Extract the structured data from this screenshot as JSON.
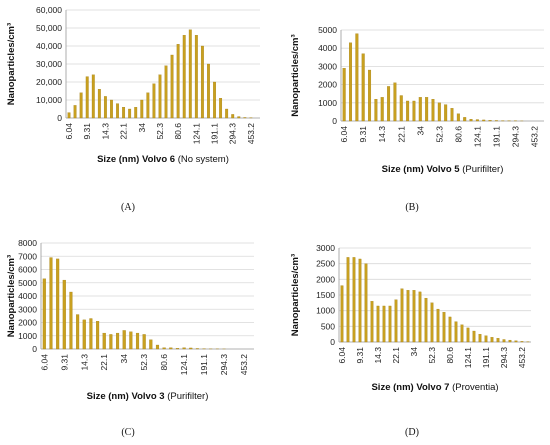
{
  "colors": {
    "bar": "#c8a020",
    "bar_edge": "#a07c10",
    "grid": "#d9d9d9",
    "axis": "#999999"
  },
  "chart_data": [
    {
      "type": "bar",
      "panel_label": "(A)",
      "ylabel": "Nanoparticles/cm³",
      "xlabel_bold": "Size (nm) Volvo 6",
      "xlabel_normal": "(No system)",
      "ylim": [
        0,
        60000
      ],
      "yticks": [
        "0",
        "10,000",
        "20,000",
        "30,000",
        "40,000",
        "50,000",
        "60,000"
      ],
      "xtick_labels": [
        "6.04",
        "9.31",
        "14.3",
        "22.1",
        "34",
        "52.3",
        "80.6",
        "124.1",
        "191.1",
        "294.3",
        "453.2"
      ],
      "values": [
        3000,
        7000,
        14000,
        23000,
        24000,
        16000,
        12000,
        10000,
        8000,
        6000,
        5000,
        6000,
        10000,
        14000,
        19000,
        24000,
        29000,
        35000,
        41000,
        46000,
        49000,
        46000,
        40000,
        30000,
        20000,
        11000,
        5000,
        2000,
        800,
        300,
        100,
        0
      ]
    },
    {
      "type": "bar",
      "panel_label": "(B)",
      "ylabel": "Nanoparticles/cm³",
      "xlabel_bold": "Size (nm) Volvo 5",
      "xlabel_normal": "(Purifilter)",
      "ylim": [
        0,
        5000
      ],
      "yticks": [
        "0",
        "1000",
        "2000",
        "3000",
        "4000",
        "5000"
      ],
      "xtick_labels": [
        "6.04",
        "9.31",
        "14.3",
        "22.1",
        "34",
        "52.3",
        "80.6",
        "124.1",
        "191.1",
        "294.3",
        "453.2"
      ],
      "values": [
        2900,
        4300,
        4800,
        3700,
        2800,
        1200,
        1300,
        1900,
        2100,
        1400,
        1100,
        1100,
        1300,
        1300,
        1200,
        1000,
        900,
        700,
        400,
        200,
        100,
        80,
        60,
        40,
        30,
        20,
        10,
        10,
        5,
        0,
        0,
        0
      ]
    },
    {
      "type": "bar",
      "panel_label": "(C)",
      "ylabel": "Nanoparticles/cm³",
      "xlabel_bold": "Size (nm) Volvo 3",
      "xlabel_normal": "(Purifilter)",
      "ylim": [
        0,
        8000
      ],
      "yticks": [
        "0",
        "1000",
        "2000",
        "3000",
        "4000",
        "5000",
        "6000",
        "7000",
        "8000"
      ],
      "xtick_labels": [
        "6.04",
        "9.31",
        "14.3",
        "22.1",
        "34",
        "52.3",
        "80.6",
        "124.1",
        "191.1",
        "294.3",
        "453.2"
      ],
      "values": [
        5300,
        6900,
        6800,
        5200,
        4300,
        2600,
        2200,
        2300,
        2100,
        1200,
        1100,
        1200,
        1400,
        1300,
        1200,
        1100,
        700,
        300,
        100,
        100,
        50,
        100,
        80,
        40,
        20,
        10,
        10,
        5,
        0,
        0,
        0,
        0
      ]
    },
    {
      "type": "bar",
      "panel_label": "(D)",
      "ylabel": "Nanoparticles/cm³",
      "xlabel_bold": "Size (nm) Volvo 7",
      "xlabel_normal": "(Proventia)",
      "ylim": [
        0,
        3000
      ],
      "yticks": [
        "0",
        "500",
        "1000",
        "1500",
        "2000",
        "2500",
        "3000"
      ],
      "xtick_labels": [
        "6.04",
        "9.31",
        "14.3",
        "22.1",
        "34",
        "52.3",
        "80.6",
        "124.1",
        "191.1",
        "294.3",
        "453.2"
      ],
      "values": [
        1800,
        2700,
        2700,
        2650,
        2500,
        1300,
        1150,
        1150,
        1150,
        1350,
        1700,
        1650,
        1650,
        1600,
        1400,
        1250,
        1050,
        950,
        800,
        650,
        550,
        450,
        350,
        250,
        200,
        150,
        120,
        80,
        60,
        40,
        20,
        10
      ]
    }
  ]
}
